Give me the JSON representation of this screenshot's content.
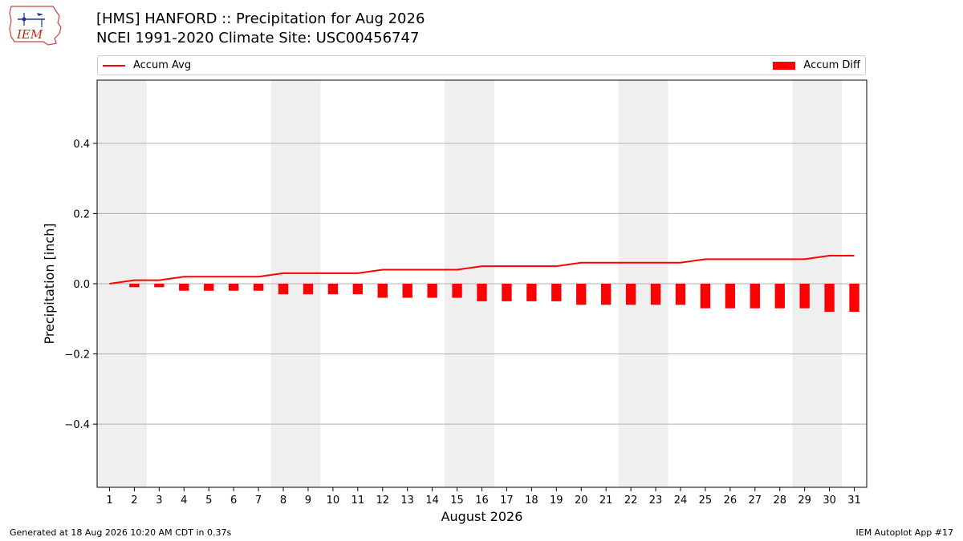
{
  "header": {
    "title_line1": "[HMS] HANFORD :: Precipitation for Aug 2026",
    "title_line2": "NCEI 1991-2020 Climate Site: USC00456747",
    "logo_text": "IEM"
  },
  "legend": {
    "line_label": "Accum Avg",
    "bar_label": "Accum Diff",
    "placement": "top, spanning full width"
  },
  "footer": {
    "left": "Generated at 18 Aug 2026 10:20 AM CDT in 0.37s",
    "right": "IEM Autoplot App #17"
  },
  "chart_data": {
    "type": "bar",
    "title": "[HMS] HANFORD :: Precipitation for Aug 2026",
    "subtitle": "NCEI 1991-2020 Climate Site: USC00456747",
    "xlabel": "August 2026",
    "ylabel": "Precipitation [inch]",
    "xlim": [
      0.5,
      31.5
    ],
    "ylim": [
      -0.58,
      0.58
    ],
    "yticks": [
      -0.4,
      -0.2,
      0.0,
      0.2,
      0.4
    ],
    "ytick_labels": [
      "−0.4",
      "−0.2",
      "0.0",
      "0.2",
      "0.4"
    ],
    "x": [
      1,
      2,
      3,
      4,
      5,
      6,
      7,
      8,
      9,
      10,
      11,
      12,
      13,
      14,
      15,
      16,
      17,
      18,
      19,
      20,
      21,
      22,
      23,
      24,
      25,
      26,
      27,
      28,
      29,
      30,
      31
    ],
    "grid": "horizontal",
    "weekend_shading": [
      [
        0.5,
        2.5
      ],
      [
        7.5,
        9.5
      ],
      [
        14.5,
        16.5
      ],
      [
        21.5,
        23.5
      ],
      [
        28.5,
        30.5
      ]
    ],
    "series": [
      {
        "name": "Accum Avg",
        "type": "line",
        "color": "#ff0000",
        "values": [
          0.0,
          0.01,
          0.01,
          0.02,
          0.02,
          0.02,
          0.02,
          0.03,
          0.03,
          0.03,
          0.03,
          0.04,
          0.04,
          0.04,
          0.04,
          0.05,
          0.05,
          0.05,
          0.05,
          0.06,
          0.06,
          0.06,
          0.06,
          0.06,
          0.07,
          0.07,
          0.07,
          0.07,
          0.07,
          0.08,
          0.08
        ]
      },
      {
        "name": "Accum Diff",
        "type": "bar",
        "color": "#ff0000",
        "values": [
          0.0,
          -0.01,
          -0.01,
          -0.02,
          -0.02,
          -0.02,
          -0.02,
          -0.03,
          -0.03,
          -0.03,
          -0.03,
          -0.04,
          -0.04,
          -0.04,
          -0.04,
          -0.05,
          -0.05,
          -0.05,
          -0.05,
          -0.06,
          -0.06,
          -0.06,
          -0.06,
          -0.06,
          -0.07,
          -0.07,
          -0.07,
          -0.07,
          -0.07,
          -0.08,
          -0.08
        ]
      }
    ]
  }
}
